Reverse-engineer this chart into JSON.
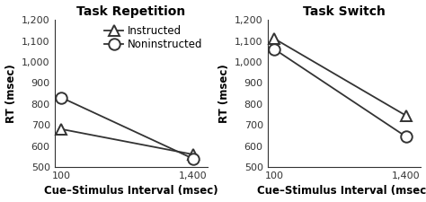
{
  "panels": [
    {
      "title": "Task Repetition",
      "xlabel": "Cue–Stimulus Interval (msec)",
      "ylabel": "RT (msec)",
      "x": [
        100,
        1400
      ],
      "series": [
        {
          "label": "Instructed",
          "values": [
            680,
            560
          ],
          "marker": "^",
          "color": "#333333"
        },
        {
          "label": "Noninstructed",
          "values": [
            830,
            540
          ],
          "marker": "o",
          "color": "#333333"
        }
      ],
      "ylim": [
        500,
        1200
      ],
      "yticks": [
        500,
        600,
        700,
        800,
        900,
        1000,
        1100,
        1200
      ],
      "ytick_labels": [
        "500",
        "600",
        "700",
        "800",
        "900",
        "1,000",
        "1,100",
        "1,200"
      ],
      "xtick_labels": [
        "100",
        "1,400"
      ],
      "xlim": [
        30,
        1550
      ],
      "show_legend": true
    },
    {
      "title": "Task Switch",
      "xlabel": "Cue–Stimulus Interval (msec)",
      "ylabel": "RT (msec)",
      "x": [
        100,
        1400
      ],
      "series": [
        {
          "label": "Instructed",
          "values": [
            1110,
            745
          ],
          "marker": "^",
          "color": "#333333"
        },
        {
          "label": "Noninstructed",
          "values": [
            1060,
            645
          ],
          "marker": "o",
          "color": "#333333"
        }
      ],
      "ylim": [
        500,
        1200
      ],
      "yticks": [
        500,
        600,
        700,
        800,
        900,
        1000,
        1100,
        1200
      ],
      "ytick_labels": [
        "500",
        "600",
        "700",
        "800",
        "900",
        "1,000",
        "1,100",
        "1,200"
      ],
      "xtick_labels": [
        "100",
        "1,400"
      ],
      "xlim": [
        30,
        1550
      ],
      "show_legend": false
    }
  ],
  "background_color": "#ffffff",
  "marker_size": 9,
  "line_width": 1.3,
  "title_fontsize": 10,
  "label_fontsize": 8.5,
  "tick_fontsize": 8,
  "legend_fontsize": 8.5
}
